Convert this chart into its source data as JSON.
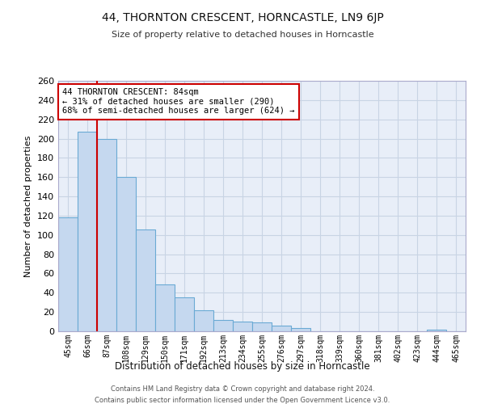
{
  "title": "44, THORNTON CRESCENT, HORNCASTLE, LN9 6JP",
  "subtitle": "Size of property relative to detached houses in Horncastle",
  "xlabel": "Distribution of detached houses by size in Horncastle",
  "ylabel": "Number of detached properties",
  "bar_labels": [
    "45sqm",
    "66sqm",
    "87sqm",
    "108sqm",
    "129sqm",
    "150sqm",
    "171sqm",
    "192sqm",
    "213sqm",
    "234sqm",
    "255sqm",
    "276sqm",
    "297sqm",
    "318sqm",
    "339sqm",
    "360sqm",
    "381sqm",
    "402sqm",
    "423sqm",
    "444sqm",
    "465sqm"
  ],
  "bar_values": [
    118,
    207,
    200,
    160,
    106,
    49,
    35,
    22,
    12,
    10,
    9,
    6,
    3,
    0,
    0,
    0,
    0,
    0,
    0,
    2,
    0
  ],
  "bar_color": "#c5d8ef",
  "bar_edge_color": "#6aaad4",
  "grid_color": "#c8d4e4",
  "background_color": "#e8eef8",
  "vline_color": "#cc0000",
  "annotation_title": "44 THORNTON CRESCENT: 84sqm",
  "annotation_line1": "← 31% of detached houses are smaller (290)",
  "annotation_line2": "68% of semi-detached houses are larger (624) →",
  "annotation_box_color": "#ffffff",
  "annotation_box_edge": "#cc0000",
  "ylim": [
    0,
    260
  ],
  "yticks": [
    0,
    20,
    40,
    60,
    80,
    100,
    120,
    140,
    160,
    180,
    200,
    220,
    240,
    260
  ],
  "footer1": "Contains HM Land Registry data © Crown copyright and database right 2024.",
  "footer2": "Contains public sector information licensed under the Open Government Licence v3.0."
}
